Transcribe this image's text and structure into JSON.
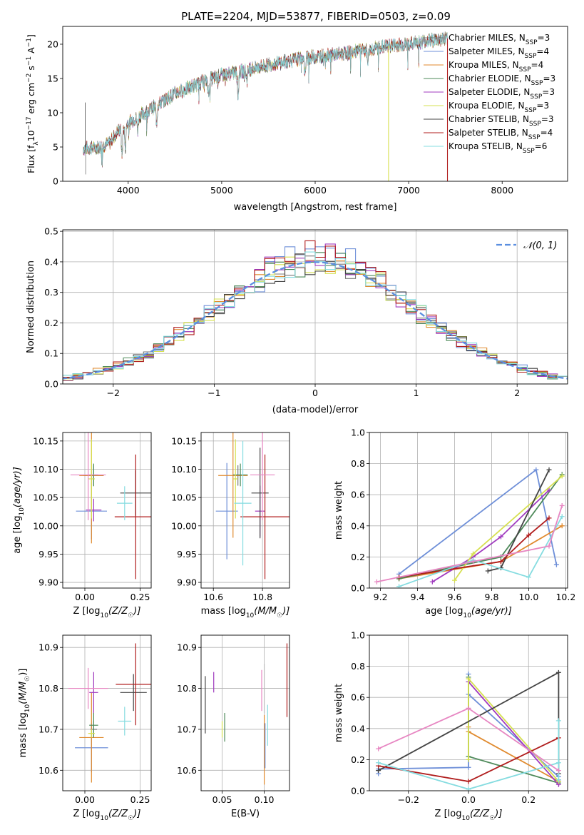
{
  "title": "PLATE=2204, MJD=53877, FIBERID=0503, z=0.09",
  "legend_models": [
    {
      "label": "Chabrier MILES, N",
      "sub": "SSP",
      "tail": "=3",
      "color": "#777777"
    },
    {
      "label": "Salpeter MILES, N",
      "sub": "SSP",
      "tail": "=4",
      "color": "#6e8fd8"
    },
    {
      "label": "Kroupa MILES, N",
      "sub": "SSP",
      "tail": "=4",
      "color": "#e08a2e"
    },
    {
      "label": "Chabrier ELODIE, N",
      "sub": "SSP",
      "tail": "=3",
      "color": "#4e8a5a"
    },
    {
      "label": "Salpeter ELODIE, N",
      "sub": "SSP",
      "tail": "=3",
      "color": "#a03bbf"
    },
    {
      "label": "Kroupa ELODIE, N",
      "sub": "SSP",
      "tail": "=3",
      "color": "#d6e050"
    },
    {
      "label": "Chabrier STELIB, N",
      "sub": "SSP",
      "tail": "=3",
      "color": "#444444"
    },
    {
      "label": "Salpeter STELIB, N",
      "sub": "SSP",
      "tail": "=4",
      "color": "#b01c1c"
    },
    {
      "label": "Kroupa STELIB, N",
      "sub": "SSP",
      "tail": "=6",
      "color": "#85dce0"
    }
  ],
  "chart_data": [
    {
      "id": "spectrum",
      "type": "line",
      "xlabel": "wavelength [Angstrom, rest frame]",
      "ylabel_parts": [
        "Flux [f",
        "λ",
        "10",
        "−17",
        " erg cm",
        "−2",
        " s",
        "−1",
        " A",
        "−1",
        "]"
      ],
      "xlim": [
        3300,
        8700
      ],
      "ylim": [
        0,
        22.6
      ],
      "xticks": [
        4000,
        5000,
        6000,
        7000,
        8000
      ],
      "yticks": [
        0,
        5,
        10,
        15,
        20
      ],
      "continuum": [
        [
          3520,
          4.8
        ],
        [
          3700,
          5.0
        ],
        [
          3800,
          5.6
        ],
        [
          3900,
          7.5
        ],
        [
          4000,
          8.5
        ],
        [
          4200,
          10.2
        ],
        [
          4500,
          12.8
        ],
        [
          4800,
          14.5
        ],
        [
          5000,
          15.5
        ],
        [
          5200,
          16.0
        ],
        [
          5500,
          17.0
        ],
        [
          5800,
          17.8
        ],
        [
          6000,
          18.2
        ],
        [
          6300,
          18.6
        ],
        [
          6600,
          19.3
        ],
        [
          6800,
          19.8
        ],
        [
          7000,
          20.0
        ],
        [
          7200,
          20.5
        ],
        [
          7400,
          20.8
        ]
      ],
      "absorption": [
        [
          3934,
          4.0
        ],
        [
          3969,
          3.5
        ],
        [
          4101,
          2.0
        ],
        [
          4304,
          2.5
        ],
        [
          4861,
          2.5
        ],
        [
          5175,
          3.5
        ],
        [
          5270,
          1.5
        ],
        [
          5890,
          2.5
        ],
        [
          6563,
          1.5
        ]
      ],
      "glitches": [
        [
          6785,
          "#d6e050"
        ],
        [
          7415,
          "#b01c1c"
        ]
      ]
    },
    {
      "id": "residuals",
      "type": "histogram",
      "xlabel": "(data-model)/error",
      "ylabel": "Normed distribution",
      "xlim": [
        -2.5,
        2.5
      ],
      "ylim": [
        0,
        0.505
      ],
      "xticks": [
        -2,
        -1,
        0,
        1,
        2
      ],
      "yticks": [
        0,
        0.1,
        0.2,
        0.3,
        0.4,
        0.5
      ],
      "bin_width": 0.1,
      "legend": "𝒩(0, 1)"
    },
    {
      "id": "age_vs_Z",
      "type": "errorbar",
      "xlabel_parts": [
        "Z [log",
        "10",
        "(Z/Z",
        "☉",
        ")]"
      ],
      "ylabel_parts": [
        "age  [log",
        "10",
        "(age/yr)]"
      ],
      "xlim": [
        -0.1,
        0.3
      ],
      "ylim": [
        9.89,
        10.165
      ],
      "xticks": [
        0.0,
        0.25
      ],
      "yticks": [
        9.9,
        9.95,
        10.0,
        10.05,
        10.1,
        10.15
      ],
      "points": [
        {
          "x": 0.04,
          "xe": 0.045,
          "y": 10.089,
          "ye": 0.018,
          "color": "#777777"
        },
        {
          "x": 0.03,
          "xe": 0.07,
          "y": 10.026,
          "ye": 0.05,
          "color": "#6e8fd8"
        },
        {
          "x": 0.03,
          "xe": 0.055,
          "y": 10.089,
          "ye": 0.12,
          "color": "#e08a2e"
        },
        {
          "x": 0.04,
          "xe": 0.02,
          "y": 10.09,
          "ye": 0.02,
          "color": "#4e8a5a"
        },
        {
          "x": 0.04,
          "xe": 0.035,
          "y": 10.028,
          "ye": 0.02,
          "color": "#a03bbf"
        },
        {
          "x": 0.03,
          "xe": 0.015,
          "y": 10.083,
          "ye": 0.07,
          "color": "#d6e050"
        },
        {
          "x": 0.23,
          "xe": 0.07,
          "y": 10.058,
          "ye": 0.04,
          "color": "#444444"
        },
        {
          "x": 0.23,
          "xe": 0.095,
          "y": 10.016,
          "ye": 0.11,
          "color": "#b01c1c"
        },
        {
          "x": 0.18,
          "xe": 0.035,
          "y": 10.04,
          "ye": 0.03,
          "color": "#85dce0"
        },
        {
          "x": 0.015,
          "xe": 0.08,
          "y": 10.09,
          "ye": 0.08,
          "color": "#e786c2"
        }
      ]
    },
    {
      "id": "age_vs_mass",
      "type": "errorbar",
      "xlabel_parts": [
        "mass [log",
        "10",
        "(M/M",
        "☉",
        ")]"
      ],
      "ylabel_parts": [],
      "xlim": [
        10.55,
        10.91
      ],
      "ylim": [
        9.89,
        10.165
      ],
      "xticks": [
        10.6,
        10.8
      ],
      "yticks": [
        9.9,
        9.95,
        10.0,
        10.05,
        10.1,
        10.15
      ],
      "points": [
        {
          "x": 10.7,
          "xe": 0.01,
          "y": 10.089,
          "ye": 0.018,
          "color": "#777777"
        },
        {
          "x": 10.655,
          "xe": 0.045,
          "y": 10.026,
          "ye": 0.085,
          "color": "#6e8fd8"
        },
        {
          "x": 10.68,
          "xe": 0.06,
          "y": 10.089,
          "ye": 0.11,
          "color": "#e08a2e"
        },
        {
          "x": 10.71,
          "xe": 0.03,
          "y": 10.09,
          "ye": 0.02,
          "color": "#4e8a5a"
        },
        {
          "x": 10.79,
          "xe": 0.02,
          "y": 10.026,
          "ye": 0.045,
          "color": "#a03bbf"
        },
        {
          "x": 10.69,
          "xe": 0.01,
          "y": 10.083,
          "ye": 0.07,
          "color": "#d6e050"
        },
        {
          "x": 10.79,
          "xe": 0.035,
          "y": 10.058,
          "ye": 0.08,
          "color": "#444444"
        },
        {
          "x": 10.81,
          "xe": 0.1,
          "y": 10.016,
          "ye": 0.11,
          "color": "#b01c1c"
        },
        {
          "x": 10.72,
          "xe": 0.035,
          "y": 10.04,
          "ye": 0.11,
          "color": "#85dce0"
        },
        {
          "x": 10.8,
          "xe": 0.05,
          "y": 10.09,
          "ye": 0.08,
          "color": "#e786c2"
        }
      ]
    },
    {
      "id": "weight_vs_age",
      "type": "line",
      "xlabel_parts": [
        "age  [log",
        "10",
        "(age/yr)]"
      ],
      "ylabel": "mass weight",
      "xlim": [
        9.14,
        10.21
      ],
      "ylim": [
        0,
        1
      ],
      "xticks": [
        9.2,
        9.4,
        9.6,
        9.8,
        10.0,
        10.2
      ],
      "yticks": [
        0,
        0.2,
        0.4,
        0.6,
        0.8,
        1.0
      ],
      "series": [
        {
          "color": "#6e8fd8",
          "points": [
            [
              9.3,
              0.09
            ],
            [
              10.04,
              0.76
            ],
            [
              10.15,
              0.15
            ]
          ]
        },
        {
          "color": "#e08a2e",
          "points": [
            [
              9.3,
              0.06
            ],
            [
              9.85,
              0.17
            ],
            [
              10.18,
              0.4
            ]
          ]
        },
        {
          "color": "#4e8a5a",
          "points": [
            [
              9.3,
              0.06
            ],
            [
              9.85,
              0.2
            ],
            [
              10.18,
              0.73
            ]
          ]
        },
        {
          "color": "#a03bbf",
          "points": [
            [
              9.48,
              0.04
            ],
            [
              9.7,
              0.2
            ],
            [
              9.85,
              0.33
            ],
            [
              10.11,
              0.63
            ]
          ]
        },
        {
          "color": "#d6e050",
          "points": [
            [
              9.6,
              0.05
            ],
            [
              9.7,
              0.22
            ],
            [
              10.18,
              0.72
            ]
          ]
        },
        {
          "color": "#444444",
          "points": [
            [
              9.78,
              0.11
            ],
            [
              9.85,
              0.13
            ],
            [
              10.11,
              0.76
            ]
          ]
        },
        {
          "color": "#b01c1c",
          "points": [
            [
              9.3,
              0.07
            ],
            [
              9.85,
              0.17
            ],
            [
              10.0,
              0.34
            ],
            [
              10.11,
              0.45
            ]
          ]
        },
        {
          "color": "#85dce0",
          "points": [
            [
              9.3,
              0.01
            ],
            [
              9.7,
              0.18
            ],
            [
              10.0,
              0.07
            ],
            [
              10.18,
              0.46
            ]
          ]
        },
        {
          "color": "#e786c2",
          "points": [
            [
              9.18,
              0.04
            ],
            [
              9.7,
              0.17
            ],
            [
              10.11,
              0.27
            ],
            [
              10.18,
              0.53
            ]
          ]
        }
      ]
    },
    {
      "id": "mass_vs_Z",
      "type": "errorbar",
      "xlabel_parts": [
        "Z [log",
        "10",
        "(Z/Z",
        "☉",
        ")]"
      ],
      "ylabel_parts": [
        "mass [log",
        "10",
        "(M/M",
        "☉",
        ")]"
      ],
      "xlim": [
        -0.1,
        0.3
      ],
      "ylim": [
        10.55,
        10.93
      ],
      "xticks": [
        0.0,
        0.25
      ],
      "yticks": [
        10.6,
        10.7,
        10.8,
        10.9
      ],
      "points": [
        {
          "x": 0.04,
          "xe": 0.015,
          "y": 10.7,
          "ye": 0.02,
          "color": "#777777"
        },
        {
          "x": 0.03,
          "xe": 0.075,
          "y": 10.655,
          "ye": 0.06,
          "color": "#6e8fd8"
        },
        {
          "x": 0.03,
          "xe": 0.055,
          "y": 10.68,
          "ye": 0.11,
          "color": "#e08a2e"
        },
        {
          "x": 0.04,
          "xe": 0.02,
          "y": 10.71,
          "ye": 0.03,
          "color": "#4e8a5a"
        },
        {
          "x": 0.04,
          "xe": 0.02,
          "y": 10.79,
          "ye": 0.05,
          "color": "#a03bbf"
        },
        {
          "x": 0.03,
          "xe": 0.015,
          "y": 10.69,
          "ye": 0.01,
          "color": "#d6e050"
        },
        {
          "x": 0.22,
          "xe": 0.06,
          "y": 10.79,
          "ye": 0.045,
          "color": "#444444"
        },
        {
          "x": 0.23,
          "xe": 0.09,
          "y": 10.81,
          "ye": 0.1,
          "color": "#b01c1c"
        },
        {
          "x": 0.18,
          "xe": 0.03,
          "y": 10.72,
          "ye": 0.035,
          "color": "#85dce0"
        },
        {
          "x": 0.015,
          "xe": 0.09,
          "y": 10.8,
          "ye": 0.05,
          "color": "#e786c2"
        }
      ]
    },
    {
      "id": "mass_vs_ebv",
      "type": "errorbar",
      "xlabel": "E(B-V)",
      "ylabel_parts": [],
      "xlim": [
        0.025,
        0.13
      ],
      "ylim": [
        10.55,
        10.93
      ],
      "xticks": [
        0.05,
        0.1
      ],
      "yticks": [
        10.6,
        10.7,
        10.8,
        10.9
      ],
      "points": [
        {
          "x": 0.03,
          "y": 10.76,
          "ye": 0.07,
          "color": "#444444"
        },
        {
          "x": 0.04,
          "y": 10.815,
          "ye": 0.025,
          "color": "#a03bbf"
        },
        {
          "x": 0.05,
          "y": 10.7,
          "ye": 0.02,
          "color": "#d6e050"
        },
        {
          "x": 0.053,
          "y": 10.705,
          "ye": 0.035,
          "color": "#4e8a5a"
        },
        {
          "x": 0.097,
          "y": 10.795,
          "ye": 0.05,
          "color": "#e786c2"
        },
        {
          "x": 0.1,
          "y": 10.65,
          "ye": 0.085,
          "color": "#e08a2e"
        },
        {
          "x": 0.101,
          "y": 10.66,
          "ye": 0.055,
          "color": "#6e8fd8"
        },
        {
          "x": 0.104,
          "y": 10.71,
          "ye": 0.05,
          "color": "#85dce0"
        },
        {
          "x": 0.127,
          "y": 10.82,
          "ye": 0.09,
          "color": "#b01c1c"
        },
        {
          "x": 0.1,
          "y": 10.8,
          "ye": 0.06,
          "color": "#bbbbbb"
        }
      ]
    },
    {
      "id": "weight_vs_Z",
      "type": "line",
      "xlabel_parts": [
        "Z [log",
        "10",
        "(Z/Z",
        "☉",
        ")]"
      ],
      "ylabel": "mass weight",
      "xlim": [
        -0.33,
        0.33
      ],
      "ylim": [
        0,
        1
      ],
      "xticks": [
        -0.2,
        0.0,
        0.2
      ],
      "yticks": [
        0,
        0.2,
        0.4,
        0.6,
        0.8,
        1.0
      ],
      "series": [
        {
          "color": "#6e8fd8",
          "points": [
            [
              -0.3,
              0.11
            ],
            [
              -0.3,
              0.14
            ],
            [
              0.0,
              0.15
            ],
            [
              0.0,
              0.75
            ],
            [
              0.0,
              0.62
            ],
            [
              0.3,
              0.09
            ]
          ]
        },
        {
          "color": "#e08a2e",
          "points": [
            [
              0.0,
              0.41
            ],
            [
              0.0,
              0.38
            ],
            [
              0.3,
              0.06
            ]
          ]
        },
        {
          "color": "#4e8a5a",
          "points": [
            [
              0.0,
              0.73
            ],
            [
              0.0,
              0.22
            ],
            [
              0.3,
              0.05
            ]
          ]
        },
        {
          "color": "#a03bbf",
          "points": [
            [
              0.0,
              0.7
            ],
            [
              0.3,
              0.04
            ],
            [
              0.3,
              0.07
            ]
          ]
        },
        {
          "color": "#d6e050",
          "points": [
            [
              0.0,
              0.2
            ],
            [
              0.0,
              0.72
            ],
            [
              0.3,
              0.06
            ]
          ]
        },
        {
          "color": "#444444",
          "points": [
            [
              -0.3,
              0.13
            ],
            [
              0.3,
              0.76
            ],
            [
              0.3,
              0.11
            ]
          ]
        },
        {
          "color": "#b01c1c",
          "points": [
            [
              -0.3,
              0.16
            ],
            [
              0.0,
              0.06
            ],
            [
              0.3,
              0.34
            ]
          ]
        },
        {
          "color": "#85dce0",
          "points": [
            [
              -0.3,
              0.18
            ],
            [
              0.0,
              0.01
            ],
            [
              0.3,
              0.18
            ],
            [
              0.3,
              0.45
            ],
            [
              0.3,
              0.07
            ]
          ]
        },
        {
          "color": "#e786c2",
          "points": [
            [
              -0.3,
              0.27
            ],
            [
              0.0,
              0.53
            ],
            [
              0.3,
              0.13
            ]
          ]
        }
      ]
    }
  ]
}
